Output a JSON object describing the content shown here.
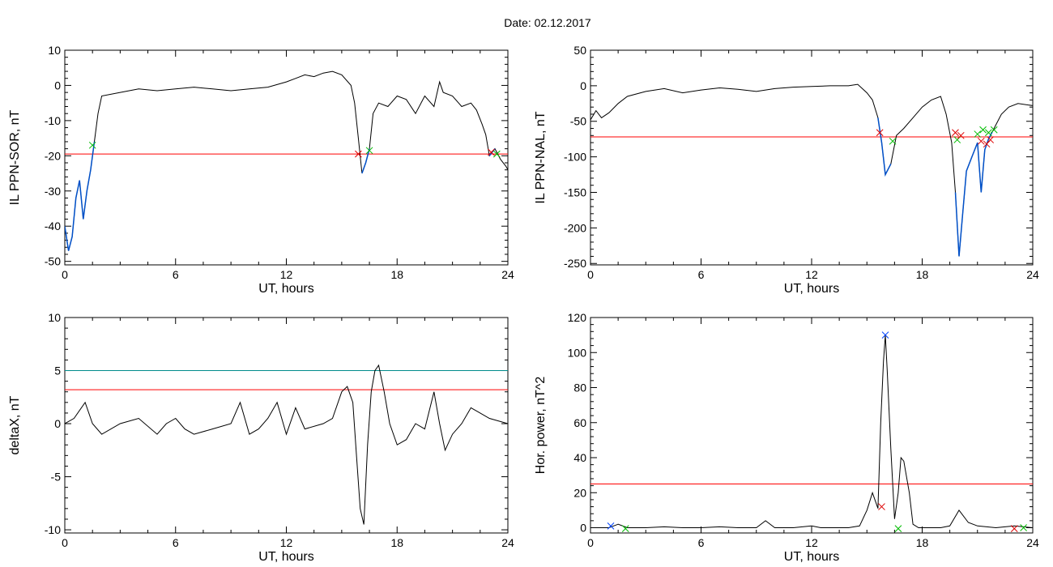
{
  "figure": {
    "title": "Date:  02.12.2017"
  },
  "colors": {
    "data_line": "#000000",
    "threshold_red": "#ff0000",
    "threshold_teal": "#008b8b",
    "event_segment": "#0050c8",
    "marker_red": "#dd0000",
    "marker_green": "#00bb00",
    "marker_blue": "#0044ff"
  },
  "chart_data": [
    {
      "type": "line",
      "ylabel": "IL PPN-SOR, nT",
      "xlabel": "UT, hours",
      "xlim": [
        0,
        24
      ],
      "ylim": [
        -51,
        10
      ],
      "xticks": [
        0,
        6,
        12,
        18,
        24
      ],
      "yticks": [
        -50,
        -40,
        -30,
        -20,
        -10,
        0,
        10
      ],
      "grid": false,
      "series": [
        {
          "x": [
            0,
            0.2,
            0.4,
            0.6,
            0.8,
            1.0,
            1.2,
            1.4,
            1.6,
            1.8,
            2.0,
            3,
            4,
            5,
            6,
            7,
            8,
            9,
            10,
            11,
            12,
            12.5,
            13,
            13.5,
            14,
            14.5,
            15,
            15.5,
            15.7,
            15.9,
            16.1,
            16.3,
            16.5,
            16.7,
            17,
            17.5,
            18,
            18.5,
            19,
            19.5,
            20,
            20.3,
            20.5,
            21,
            21.5,
            22,
            22.3,
            22.6,
            22.8,
            23.0,
            23.3,
            23.6,
            23.9,
            24
          ],
          "y": [
            -40,
            -47,
            -43,
            -32,
            -27,
            -38,
            -30,
            -24,
            -16,
            -8,
            -3,
            -2,
            -1,
            -1.5,
            -1,
            -0.5,
            -1,
            -1.5,
            -1,
            -0.5,
            1,
            2,
            3,
            2.5,
            3.5,
            4,
            3,
            0,
            -5,
            -15,
            -25,
            -22,
            -18,
            -8,
            -5,
            -6,
            -3,
            -4,
            -8,
            -3,
            -6,
            1,
            -2,
            -3,
            -6,
            -5,
            -7,
            -11,
            -14,
            -20,
            -18,
            -21,
            -23,
            -24
          ]
        }
      ],
      "threshold_lines": [
        {
          "y": -19.5,
          "color": "red"
        }
      ],
      "event_segments": [
        {
          "from": 0,
          "to": 1.6
        },
        {
          "from": 15.95,
          "to": 16.55
        },
        {
          "from": 23.0,
          "to": 23.5
        }
      ],
      "markers": [
        {
          "x": 1.5,
          "y": -17,
          "color": "green"
        },
        {
          "x": 15.9,
          "y": -19.5,
          "color": "red"
        },
        {
          "x": 16.5,
          "y": -18.5,
          "color": "green"
        },
        {
          "x": 23.1,
          "y": -19,
          "color": "red"
        },
        {
          "x": 23.4,
          "y": -19.5,
          "color": "green"
        }
      ]
    },
    {
      "type": "line",
      "ylabel": "IL PPN-NAL, nT",
      "xlabel": "UT, hours",
      "xlim": [
        0,
        24
      ],
      "ylim": [
        -252,
        50
      ],
      "xticks": [
        0,
        6,
        12,
        18,
        24
      ],
      "yticks": [
        -250,
        -200,
        -150,
        -100,
        -50,
        0,
        50
      ],
      "grid": false,
      "series": [
        {
          "x": [
            0,
            0.3,
            0.6,
            1.0,
            1.5,
            2,
            3,
            4,
            5,
            6,
            7,
            8,
            9,
            10,
            11,
            12,
            13,
            14,
            14.5,
            15,
            15.3,
            15.6,
            15.8,
            16.0,
            16.3,
            16.6,
            17,
            17.5,
            18,
            18.5,
            19,
            19.3,
            19.6,
            19.8,
            20.0,
            20.2,
            20.4,
            20.7,
            21.0,
            21.2,
            21.4,
            21.6,
            21.8,
            22.0,
            22.3,
            22.7,
            23.2,
            24
          ],
          "y": [
            -48,
            -35,
            -45,
            -38,
            -25,
            -15,
            -8,
            -4,
            -10,
            -6,
            -3,
            -5,
            -8,
            -4,
            -2,
            -1,
            0,
            0,
            2,
            -10,
            -20,
            -45,
            -80,
            -125,
            -110,
            -70,
            -60,
            -45,
            -30,
            -20,
            -15,
            -40,
            -80,
            -150,
            -240,
            -180,
            -120,
            -100,
            -80,
            -150,
            -90,
            -75,
            -65,
            -55,
            -40,
            -30,
            -25,
            -28
          ]
        }
      ],
      "threshold_lines": [
        {
          "y": -72,
          "color": "red"
        }
      ],
      "event_segments": [
        {
          "from": 15.6,
          "to": 16.5
        },
        {
          "from": 19.7,
          "to": 21.8
        }
      ],
      "markers": [
        {
          "x": 15.7,
          "y": -66,
          "color": "red"
        },
        {
          "x": 16.4,
          "y": -78,
          "color": "green"
        },
        {
          "x": 19.8,
          "y": -66,
          "color": "red"
        },
        {
          "x": 19.9,
          "y": -76,
          "color": "green"
        },
        {
          "x": 20.1,
          "y": -70,
          "color": "red"
        },
        {
          "x": 21.0,
          "y": -68,
          "color": "green"
        },
        {
          "x": 21.2,
          "y": -78,
          "color": "red"
        },
        {
          "x": 21.3,
          "y": -62,
          "color": "green"
        },
        {
          "x": 21.5,
          "y": -82,
          "color": "red"
        },
        {
          "x": 21.6,
          "y": -66,
          "color": "green"
        },
        {
          "x": 21.7,
          "y": -76,
          "color": "red"
        },
        {
          "x": 21.9,
          "y": -62,
          "color": "green"
        }
      ]
    },
    {
      "type": "line",
      "ylabel": "deltaX, nT",
      "xlabel": "UT, hours",
      "xlim": [
        0,
        24
      ],
      "ylim": [
        -10.3,
        10
      ],
      "xticks": [
        0,
        6,
        12,
        18,
        24
      ],
      "yticks": [
        -10,
        -5,
        0,
        5,
        10
      ],
      "grid": false,
      "series": [
        {
          "x": [
            0,
            0.5,
            1.1,
            1.5,
            2,
            3,
            4,
            5,
            5.5,
            6,
            6.5,
            7,
            8,
            9,
            9.5,
            10,
            10.5,
            11,
            11.5,
            12,
            12.5,
            13,
            14,
            14.5,
            15,
            15.3,
            15.6,
            15.8,
            16.0,
            16.2,
            16.4,
            16.6,
            16.8,
            17.0,
            17.3,
            17.6,
            18,
            18.5,
            19,
            19.5,
            20.0,
            20.3,
            20.6,
            21,
            21.5,
            22,
            23,
            24
          ],
          "y": [
            0,
            0.5,
            2,
            0,
            -1,
            0,
            0.5,
            -1,
            0,
            0.5,
            -0.5,
            -1,
            -0.5,
            0,
            2,
            -1,
            -0.5,
            0.5,
            2,
            -1,
            1.5,
            -0.5,
            0,
            0.5,
            3,
            3.5,
            2,
            -3,
            -8,
            -9.5,
            -2,
            3,
            5,
            5.5,
            3,
            0,
            -2,
            -1.5,
            0,
            -0.5,
            3,
            0,
            -2.5,
            -1,
            0,
            1.5,
            0.5,
            0
          ]
        }
      ],
      "threshold_lines": [
        {
          "y": 5,
          "color": "teal"
        },
        {
          "y": 3.2,
          "color": "red"
        }
      ],
      "event_segments": [],
      "markers": []
    },
    {
      "type": "line",
      "ylabel": "Hor. power, nT^2",
      "xlabel": "UT, hours",
      "xlim": [
        0,
        24
      ],
      "ylim": [
        -3,
        120
      ],
      "xticks": [
        0,
        6,
        12,
        18,
        24
      ],
      "yticks": [
        0,
        20,
        40,
        60,
        80,
        100,
        120
      ],
      "grid": false,
      "series": [
        {
          "x": [
            0,
            1,
            1.5,
            2,
            3,
            4,
            5,
            6,
            7,
            8,
            9,
            9.5,
            10,
            11,
            12,
            12.5,
            13,
            14,
            14.6,
            15.0,
            15.3,
            15.6,
            15.75,
            15.9,
            16.0,
            16.1,
            16.3,
            16.5,
            16.7,
            16.85,
            17.0,
            17.3,
            17.5,
            17.8,
            18,
            19,
            19.5,
            20.0,
            20.5,
            21,
            22,
            22.5,
            23,
            24
          ],
          "y": [
            0,
            0,
            2,
            0,
            0,
            0.5,
            0,
            0,
            0.5,
            0,
            0,
            4,
            0,
            0,
            1,
            0,
            0,
            0,
            1,
            10,
            20,
            11,
            60,
            95,
            110,
            90,
            45,
            5,
            20,
            40,
            38,
            20,
            2,
            0,
            0,
            0,
            1,
            10,
            3,
            1,
            0,
            0.5,
            1,
            0
          ]
        }
      ],
      "threshold_lines": [
        {
          "y": 25,
          "color": "red"
        }
      ],
      "event_segments": [],
      "markers": [
        {
          "x": 1.1,
          "y": 1,
          "color": "blue"
        },
        {
          "x": 1.9,
          "y": -0.5,
          "color": "green"
        },
        {
          "x": 15.8,
          "y": 12,
          "color": "red"
        },
        {
          "x": 16.0,
          "y": 110,
          "color": "blue"
        },
        {
          "x": 16.7,
          "y": -0.5,
          "color": "green"
        },
        {
          "x": 23.0,
          "y": -0.5,
          "color": "red"
        },
        {
          "x": 23.5,
          "y": 0,
          "color": "green"
        }
      ]
    }
  ]
}
